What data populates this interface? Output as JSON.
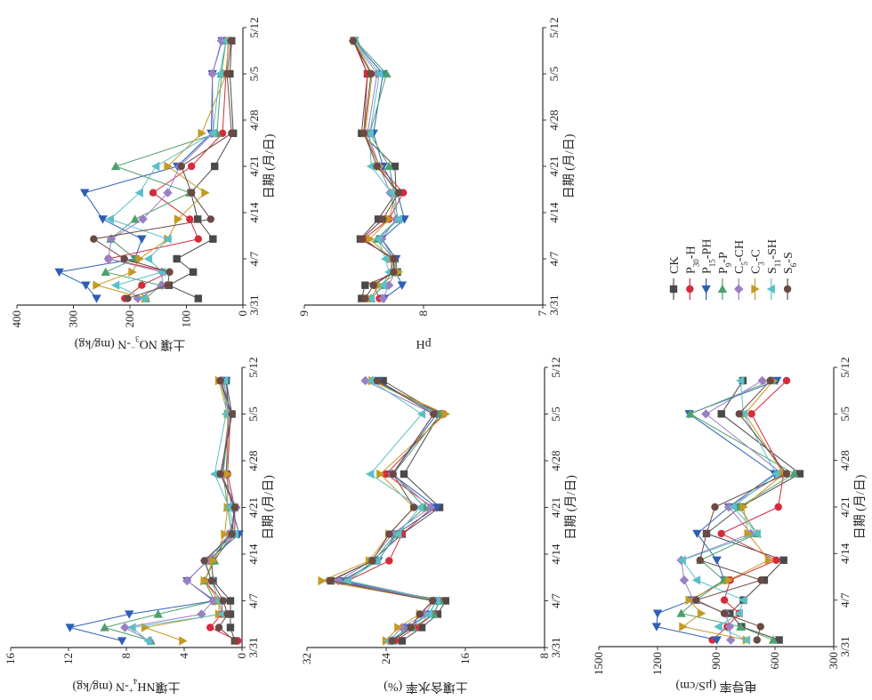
{
  "legend": [
    {
      "base": "CK",
      "sub": "",
      "tail": "",
      "color": "#4a4a4a",
      "marker": "square"
    },
    {
      "base": "P",
      "sub": "30",
      "tail": "-H",
      "color": "#d62b3b",
      "marker": "circle"
    },
    {
      "base": "P",
      "sub": "15",
      "tail": "-PH",
      "color": "#2e5fb5",
      "marker": "triangle-left"
    },
    {
      "base": "P",
      "sub": "9",
      "tail": "-P",
      "color": "#4ea06e",
      "marker": "triangle-right"
    },
    {
      "base": "C",
      "sub": "5",
      "tail": "-CH",
      "color": "#9a7fc1",
      "marker": "diamond"
    },
    {
      "base": "C",
      "sub": "3",
      "tail": "-C",
      "color": "#c39a25",
      "marker": "triangle-down"
    },
    {
      "base": "S",
      "sub": "11",
      "tail": "-SH",
      "color": "#5cbfc7",
      "marker": "triangle-up"
    },
    {
      "base": "S",
      "sub": "6",
      "tail": "-S",
      "color": "#6b4a44",
      "marker": "circle"
    }
  ],
  "chart_data": [
    {
      "id": "nh4",
      "type": "line",
      "ylabel": {
        "pre": "土壤NH",
        "sub": "4",
        "sup": "+",
        "post": "-N (mg/kg)"
      },
      "xlabel": "日期 (月/日)",
      "xticks": [
        "3/31",
        "4/7",
        "4/14",
        "4/21",
        "4/28",
        "5/5",
        "5/12"
      ],
      "ylim": [
        0,
        16
      ],
      "yticks": [
        "0",
        "4",
        "8",
        "12",
        "16"
      ],
      "x": [
        "4/1",
        "4/3",
        "4/5",
        "4/7",
        "4/10",
        "4/13",
        "4/17",
        "4/21",
        "4/26",
        "5/5",
        "5/10"
      ],
      "series": [
        {
          "name": "CK",
          "values": [
            0.5,
            0.8,
            0.8,
            0.8,
            2.0,
            2.1,
            0.8,
            0.5,
            1.4,
            0.7,
            1.1
          ]
        },
        {
          "name": "P30-H",
          "values": [
            0.3,
            2.2,
            1.4,
            1.4,
            2.6,
            2.0,
            0.5,
            0.5,
            1.0,
            0.8,
            1.3
          ]
        },
        {
          "name": "P15-PH",
          "values": [
            8.3,
            11.9,
            7.8,
            1.9,
            3.8,
            2.4,
            0.2,
            0.7,
            1.1,
            0.9,
            1.1
          ]
        },
        {
          "name": "P9-P",
          "values": [
            6.3,
            9.5,
            5.8,
            1.9,
            2.6,
            1.9,
            0.7,
            1.0,
            1.3,
            0.9,
            1.5
          ]
        },
        {
          "name": "C5-CH",
          "values": [
            6.4,
            8.1,
            2.8,
            2.0,
            3.8,
            2.4,
            0.9,
            0.4,
            1.4,
            0.9,
            1.4
          ]
        },
        {
          "name": "C3-C",
          "values": [
            4.1,
            6.7,
            1.6,
            1.6,
            2.6,
            2.0,
            1.2,
            1.0,
            1.0,
            1.0,
            1.6
          ]
        },
        {
          "name": "S11-SH",
          "values": [
            6.5,
            7.6,
            1.4,
            1.6,
            2.1,
            2.6,
            0.5,
            0.9,
            1.9,
            1.1,
            1.2
          ]
        },
        {
          "name": "S6-S",
          "values": [
            0.5,
            1.6,
            1.0,
            1.3,
            2.1,
            2.6,
            0.7,
            0.5,
            1.5,
            0.7,
            1.5
          ]
        }
      ]
    },
    {
      "id": "no3",
      "type": "line",
      "ylabel": {
        "pre": "土壤 NO",
        "sub": "3",
        "sup": "−",
        "post": "-N (mg/kg)"
      },
      "xlabel": "日期 (月/日)",
      "xticks": [
        "3/31",
        "4/7",
        "4/14",
        "4/21",
        "4/28",
        "5/5",
        "5/12"
      ],
      "ylim": [
        0,
        400
      ],
      "yticks": [
        "0",
        "100",
        "200",
        "300",
        "400"
      ],
      "x": [
        "4/1",
        "4/3",
        "4/5",
        "4/7",
        "4/10",
        "4/13",
        "4/17",
        "4/21",
        "4/26",
        "5/5",
        "5/10"
      ],
      "series": [
        {
          "name": "CK",
          "values": [
            79,
            131,
            88,
            117,
            53,
            80,
            92,
            50,
            17,
            23,
            20
          ]
        },
        {
          "name": "P30-H",
          "values": [
            209,
            179,
            130,
            238,
            79,
            94,
            159,
            91,
            36,
            30,
            25
          ]
        },
        {
          "name": "P15-PH",
          "values": [
            259,
            278,
            325,
            191,
            179,
            248,
            280,
            116,
            56,
            54,
            37
          ]
        },
        {
          "name": "P9-P",
          "values": [
            172,
            146,
            243,
            191,
            234,
            191,
            94,
            225,
            46,
            38,
            30
          ]
        },
        {
          "name": "C5-CH",
          "values": [
            186,
            143,
            143,
            238,
            233,
            177,
            133,
            112,
            53,
            54,
            38
          ]
        },
        {
          "name": "C3-C",
          "values": [
            172,
            259,
            196,
            183,
            133,
            115,
            67,
            133,
            73,
            29,
            26
          ]
        },
        {
          "name": "S11-SH",
          "values": [
            175,
            225,
            143,
            167,
            133,
            235,
            183,
            154,
            53,
            41,
            30
          ]
        },
        {
          "name": "S6-S",
          "values": [
            204,
            133,
            130,
            210,
            264,
            57,
            91,
            109,
            20,
            28,
            21
          ]
        }
      ]
    },
    {
      "id": "moisture",
      "type": "line",
      "ylabel": {
        "pre": "土壤含水率 (%)",
        "sub": "",
        "sup": "",
        "post": ""
      },
      "xlabel": "日期 (月/日)",
      "xticks": [
        "3/31",
        "4/7",
        "4/14",
        "4/21",
        "4/28",
        "5/5",
        "5/12"
      ],
      "ylim": [
        8,
        32
      ],
      "yticks": [
        "8",
        "16",
        "24",
        "32"
      ],
      "x": [
        "4/1",
        "4/3",
        "4/5",
        "4/7",
        "4/10",
        "4/13",
        "4/17",
        "4/21",
        "4/26",
        "5/5",
        "5/10"
      ],
      "series": [
        {
          "name": "CK",
          "values": [
            22.4,
            20.4,
            18.8,
            18.0,
            29.6,
            25.4,
            22.4,
            18.6,
            22.2,
            18.6,
            24.3
          ]
        },
        {
          "name": "P30-H",
          "values": [
            23.1,
            21.0,
            19.2,
            18.6,
            27.9,
            23.7,
            22.4,
            19.3,
            24.0,
            18.2,
            25.2
          ]
        },
        {
          "name": "P15-PH",
          "values": [
            23.4,
            21.9,
            19.7,
            18.9,
            28.5,
            24.8,
            23.0,
            18.9,
            23.4,
            18.9,
            24.8
          ]
        },
        {
          "name": "P9-P",
          "values": [
            23.4,
            21.3,
            19.2,
            18.6,
            28.1,
            25.2,
            23.1,
            20.1,
            23.3,
            18.5,
            25.4
          ]
        },
        {
          "name": "C5-CH",
          "values": [
            23.7,
            22.4,
            20.1,
            19.2,
            28.8,
            25.5,
            23.4,
            19.5,
            23.4,
            19.2,
            26.1
          ]
        },
        {
          "name": "C3-C",
          "values": [
            24.0,
            22.8,
            20.6,
            19.2,
            30.5,
            25.7,
            23.7,
            21.2,
            24.6,
            18.0,
            25.4
          ]
        },
        {
          "name": "S11-SH",
          "values": [
            23.7,
            21.6,
            19.7,
            18.9,
            27.9,
            24.9,
            22.8,
            20.6,
            25.6,
            20.4,
            25.5
          ]
        },
        {
          "name": "S6-S",
          "values": [
            23.4,
            21.5,
            20.6,
            19.3,
            29.7,
            25.4,
            23.7,
            21.2,
            23.3,
            19.2,
            24.9
          ]
        }
      ]
    },
    {
      "id": "ph",
      "type": "line",
      "ylabel": {
        "pre": "pH",
        "sub": "",
        "sup": "",
        "post": ""
      },
      "xlabel": "日期 (月/日)",
      "xticks": [
        "3/31",
        "4/7",
        "4/14",
        "4/21",
        "4/28",
        "5/5",
        "5/12"
      ],
      "ylim": [
        7,
        9
      ],
      "yticks": [
        "7",
        "8",
        "9"
      ],
      "x": [
        "4/1",
        "4/3",
        "4/5",
        "4/7",
        "4/10",
        "4/13",
        "4/17",
        "4/21",
        "4/26",
        "5/5",
        "5/10"
      ],
      "series": [
        {
          "name": "CK",
          "values": [
            8.52,
            8.49,
            8.22,
            8.24,
            8.53,
            8.38,
            8.23,
            8.24,
            8.52,
            8.47,
            8.58
          ]
        },
        {
          "name": "P30-H",
          "values": [
            8.37,
            8.42,
            8.27,
            8.27,
            8.5,
            8.29,
            8.17,
            8.37,
            8.5,
            8.47,
            8.59
          ]
        },
        {
          "name": "P15-PH",
          "values": [
            8.33,
            8.18,
            8.23,
            8.23,
            8.35,
            8.16,
            8.22,
            8.34,
            8.42,
            8.34,
            8.58
          ]
        },
        {
          "name": "P9-P",
          "values": [
            8.44,
            8.33,
            8.27,
            8.25,
            8.39,
            8.22,
            8.24,
            8.29,
            8.45,
            8.31,
            8.57
          ]
        },
        {
          "name": "C5-CH",
          "values": [
            8.34,
            8.29,
            8.24,
            8.25,
            8.35,
            8.23,
            8.28,
            8.37,
            8.47,
            8.39,
            8.59
          ]
        },
        {
          "name": "C3-C",
          "values": [
            8.45,
            8.37,
            8.21,
            8.27,
            8.45,
            8.29,
            8.23,
            8.37,
            8.49,
            8.43,
            8.58
          ]
        },
        {
          "name": "S11-SH",
          "values": [
            8.44,
            8.34,
            8.29,
            8.32,
            8.38,
            8.21,
            8.27,
            8.44,
            8.45,
            8.37,
            8.58
          ]
        },
        {
          "name": "S6-S",
          "values": [
            8.49,
            8.42,
            8.25,
            8.25,
            8.52,
            8.34,
            8.21,
            8.39,
            8.5,
            8.44,
            8.59
          ]
        }
      ]
    },
    {
      "id": "ec",
      "type": "line",
      "ylabel": {
        "pre": "电导率 (μS/cm)",
        "sub": "",
        "sup": "",
        "post": ""
      },
      "xlabel": "日期 (月/日)",
      "xticks": [
        "3/31",
        "4/7",
        "4/14",
        "4/21",
        "4/28",
        "5/5",
        "5/12"
      ],
      "ylim": [
        300,
        1500
      ],
      "yticks": [
        "300",
        "600",
        "900",
        "1200",
        "1500"
      ],
      "x": [
        "4/1",
        "4/3",
        "4/5",
        "4/7",
        "4/10",
        "4/13",
        "4/17",
        "4/21",
        "4/26",
        "5/5",
        "5/10"
      ],
      "series": [
        {
          "name": "CK",
          "values": [
            579,
            771,
            830,
            761,
            655,
            556,
            950,
            776,
            473,
            874,
            764
          ]
        },
        {
          "name": "P30-H",
          "values": [
            920,
            844,
            783,
            859,
            829,
            594,
            874,
            583,
            556,
            720,
            541
          ]
        },
        {
          "name": "P15-PH",
          "values": [
            897,
            1205,
            1200,
            1026,
            859,
            897,
            998,
            836,
            602,
            1038,
            590
          ]
        },
        {
          "name": "P9-P",
          "values": [
            609,
            776,
            1079,
            1003,
            862,
            980,
            692,
            783,
            503,
            1033,
            617
          ]
        },
        {
          "name": "C5-CH",
          "values": [
            826,
            832,
            852,
            1018,
            1064,
            1079,
            723,
            836,
            564,
            953,
            665
          ]
        },
        {
          "name": "C3-C",
          "values": [
            746,
            1071,
            977,
            1038,
            836,
            632,
            738,
            761,
            556,
            753,
            609
          ]
        },
        {
          "name": "S11-SH",
          "values": [
            746,
            889,
            783,
            761,
            1000,
            1074,
            692,
            814,
            594,
            761,
            776
          ]
        },
        {
          "name": "S6-S",
          "values": [
            692,
            674,
            859,
            1003,
            671,
            983,
            950,
            907,
            541,
            783,
            624
          ]
        }
      ]
    }
  ]
}
